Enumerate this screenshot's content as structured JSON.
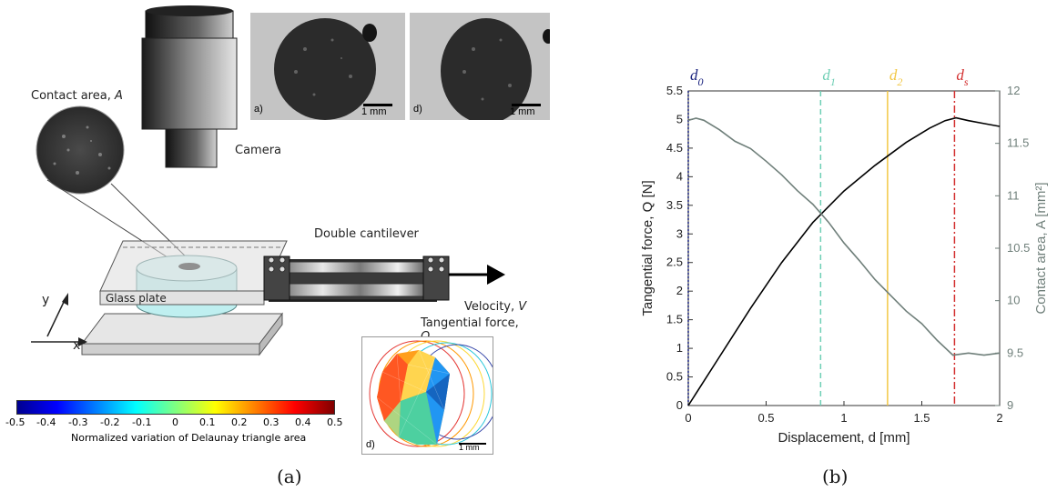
{
  "panel_a": {
    "contact_area_label": "Contact area, ",
    "contact_area_symbol": "A",
    "camera_label": "Camera",
    "image_a_tag": "a)",
    "image_b_tag": "d)",
    "scale_label": "1 mm",
    "double_cantilever_label": "Double cantilever",
    "glass_plate_label": "Glass plate",
    "velocity_label": "Velocity, ",
    "velocity_symbol": "V",
    "tangential_label": "Tangential force, ",
    "tangential_symbol": "Q",
    "axis_y": "y",
    "axis_x": "x",
    "colorbar_ticks": [
      "-0.5",
      "-0.4",
      "-0.3",
      "-0.2",
      "-0.1",
      "0",
      "0.1",
      "0.2",
      "0.3",
      "0.4",
      "0.5"
    ],
    "colorbar_label": "Normalized variation of Delaunay triangle area",
    "mesh_tag": "d)",
    "mesh_scale_label": "1 mm",
    "caption": "(a)"
  },
  "panel_b": {
    "caption": "(b)"
  },
  "chart_data": {
    "type": "line",
    "xlabel": "Displacement, d [mm]",
    "ylabel_left": "Tangential force,  Q [N]",
    "ylabel_right": "Contact area,  A [mm²]",
    "xlim": [
      0,
      2
    ],
    "ylim_left": [
      0,
      5.5
    ],
    "ylim_right": [
      9,
      12
    ],
    "x_ticks": [
      "0",
      "0.5",
      "1",
      "1.5",
      "2"
    ],
    "y_ticks_left": [
      "0",
      "0.5",
      "1",
      "1.5",
      "2",
      "2.5",
      "3",
      "3.5",
      "4",
      "4.5",
      "5",
      "5.5"
    ],
    "y_ticks_right": [
      "9",
      "9.5",
      "10",
      "10.5",
      "11",
      "11.5",
      "12"
    ],
    "grid": false,
    "series": [
      {
        "axis": "left",
        "color": "#000000",
        "x": [
          0,
          0.2,
          0.4,
          0.6,
          0.8,
          1.0,
          1.2,
          1.4,
          1.55,
          1.65,
          1.72,
          1.8,
          1.9,
          2.0
        ],
        "y": [
          0,
          0.85,
          1.7,
          2.5,
          3.2,
          3.75,
          4.2,
          4.6,
          4.85,
          4.98,
          5.03,
          4.98,
          4.93,
          4.88
        ]
      },
      {
        "axis": "right",
        "color": "#6f7f7a",
        "x": [
          0,
          0.05,
          0.1,
          0.2,
          0.3,
          0.4,
          0.5,
          0.6,
          0.7,
          0.8,
          0.9,
          1.0,
          1.1,
          1.2,
          1.3,
          1.4,
          1.5,
          1.6,
          1.7,
          1.8,
          1.9,
          2.0
        ],
        "y": [
          11.72,
          11.74,
          11.72,
          11.63,
          11.52,
          11.45,
          11.33,
          11.2,
          11.05,
          10.92,
          10.75,
          10.55,
          10.38,
          10.2,
          10.05,
          9.9,
          9.78,
          9.62,
          9.48,
          9.5,
          9.48,
          9.5
        ]
      }
    ],
    "vlines": [
      {
        "label": "d",
        "sub": "0",
        "x": 0.0,
        "color": "#1a237e",
        "style": "dotted"
      },
      {
        "label": "d",
        "sub": "1",
        "x": 0.85,
        "color": "#6fcfb5",
        "style": "dashed"
      },
      {
        "label": "d",
        "sub": "2",
        "x": 1.28,
        "color": "#f2c744",
        "style": "solid"
      },
      {
        "label": "d",
        "sub": "s",
        "x": 1.71,
        "color": "#d32f2f",
        "style": "dashdot"
      }
    ]
  }
}
